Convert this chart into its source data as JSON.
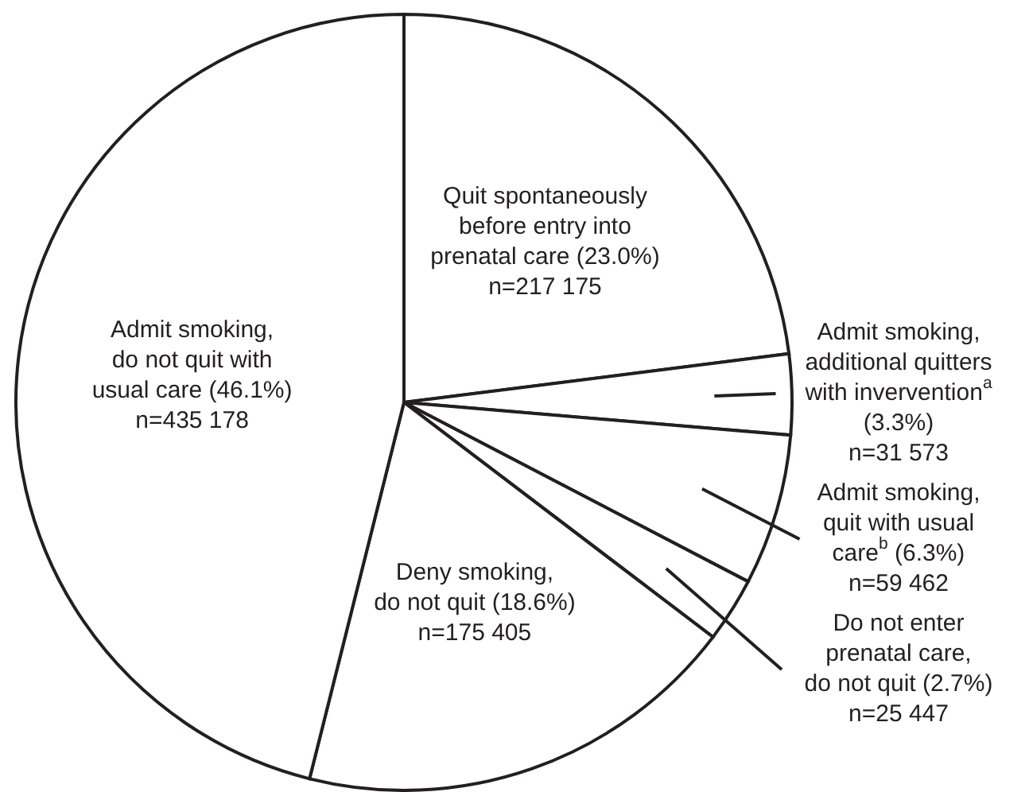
{
  "chart_data": {
    "type": "pie",
    "categories": [
      "Quit spontaneously\nbefore entry into\nprenatal care (23.0%)",
      "Admit smoking,\nadditional quitters\nwith invervention$^{a}$\n(3.3%)",
      "Admit smoking,\nquit with usual\ncare$^{b}$ (6.3%)",
      "Do not enter\nprenatal care,\ndo not quit (2.7%)",
      "Deny smoking,\ndo not quit (18.6%)",
      "Admit smoking,\ndo not quit with\nusual care (46.1%)"
    ],
    "values": [
      217175,
      31573,
      59462,
      25447,
      175405,
      435178
    ],
    "value_labels": [
      "n=217 175",
      "n=31 573",
      "n=59 462",
      "n=25 447",
      "n=175 405",
      "n=435 178"
    ],
    "colors": [
      "#ffffff",
      "#ffffff",
      "#ffffff",
      "#ffffff",
      "#ffffff",
      "#ffffff"
    ]
  }
}
